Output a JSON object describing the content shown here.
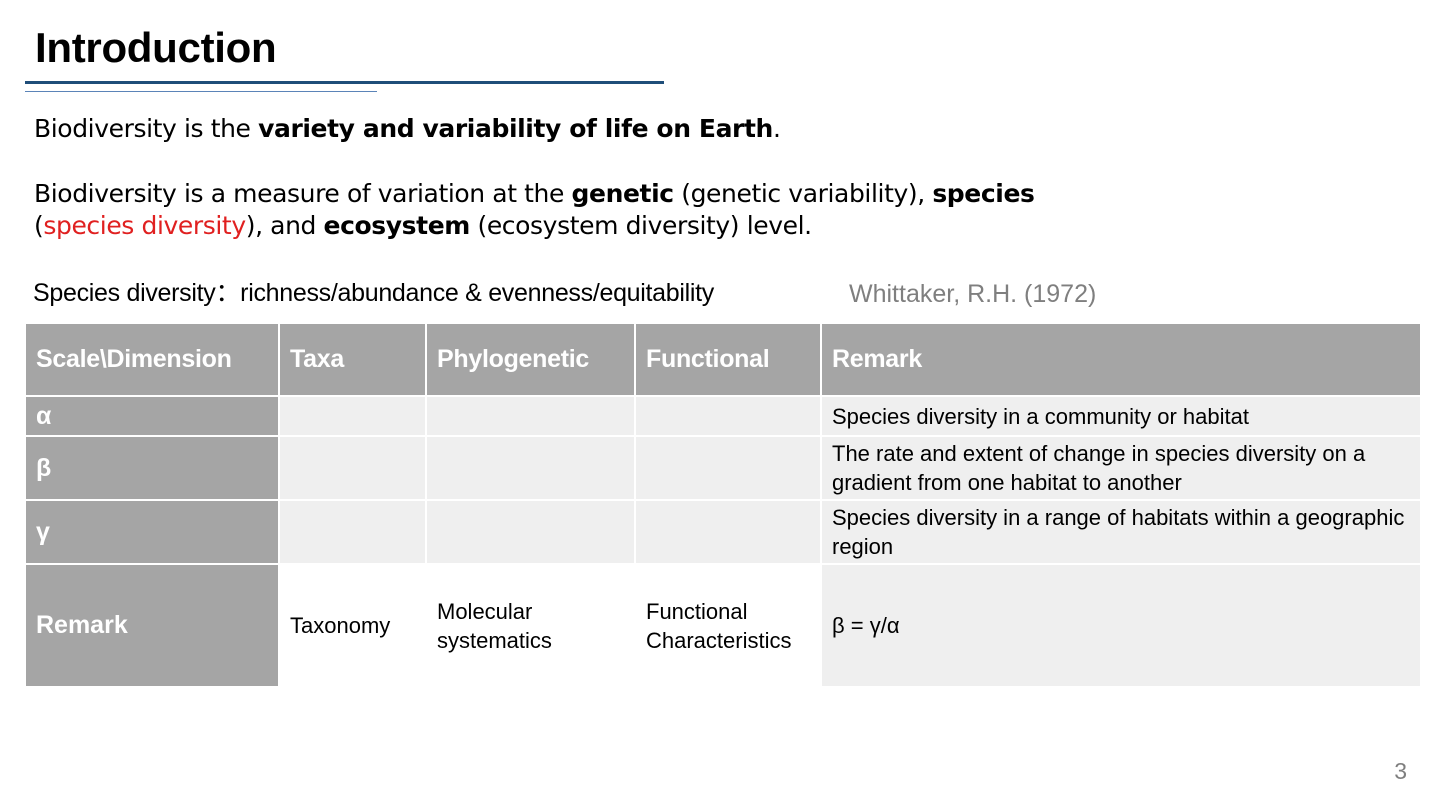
{
  "slide": {
    "title": "Introduction",
    "page_number": "3"
  },
  "paragraph1": {
    "prefix": "Biodiversity is the ",
    "bold": "variety and variability of life on Earth",
    "suffix": "."
  },
  "paragraph2": {
    "part1": "Biodiversity is a measure of variation at the ",
    "genetic": "genetic",
    "part2": " (genetic variability), ",
    "species": "species",
    "open_paren": "(",
    "species_diversity": "species diversity",
    "part3": "), and ",
    "ecosystem": "ecosystem",
    "part4": " (ecosystem diversity) level."
  },
  "species_line": {
    "text": "Species diversity：richness/abundance & evenness/equitability",
    "citation": "Whittaker, R.H. (1972)"
  },
  "table": {
    "headers": [
      "Scale\\Dimension",
      "Taxa",
      "Phylogenetic",
      "Functional",
      "Remark"
    ],
    "rows": [
      {
        "label": "α",
        "taxa": "",
        "phylogenetic": "",
        "functional": "",
        "remark": "Species diversity in a community or habitat"
      },
      {
        "label": "β",
        "taxa": "",
        "phylogenetic": "",
        "functional": "",
        "remark": "The rate and extent of change in species diversity on a gradient from one habitat to another"
      },
      {
        "label": "γ",
        "taxa": "",
        "phylogenetic": "",
        "functional": "",
        "remark": "Species diversity in a range of habitats within a geographic region"
      },
      {
        "label": "Remark",
        "taxa": "Taxonomy",
        "phylogenetic": "Molecular systematics",
        "functional": "Functional Characteristics",
        "remark": "β = γ/α"
      }
    ]
  },
  "colors": {
    "title_rule": "#1f4e79",
    "header_fill": "#a5a5a5",
    "cell_fill": "#efefef",
    "highlight_red": "#e02020",
    "citation_gray": "#7f7f7f"
  }
}
